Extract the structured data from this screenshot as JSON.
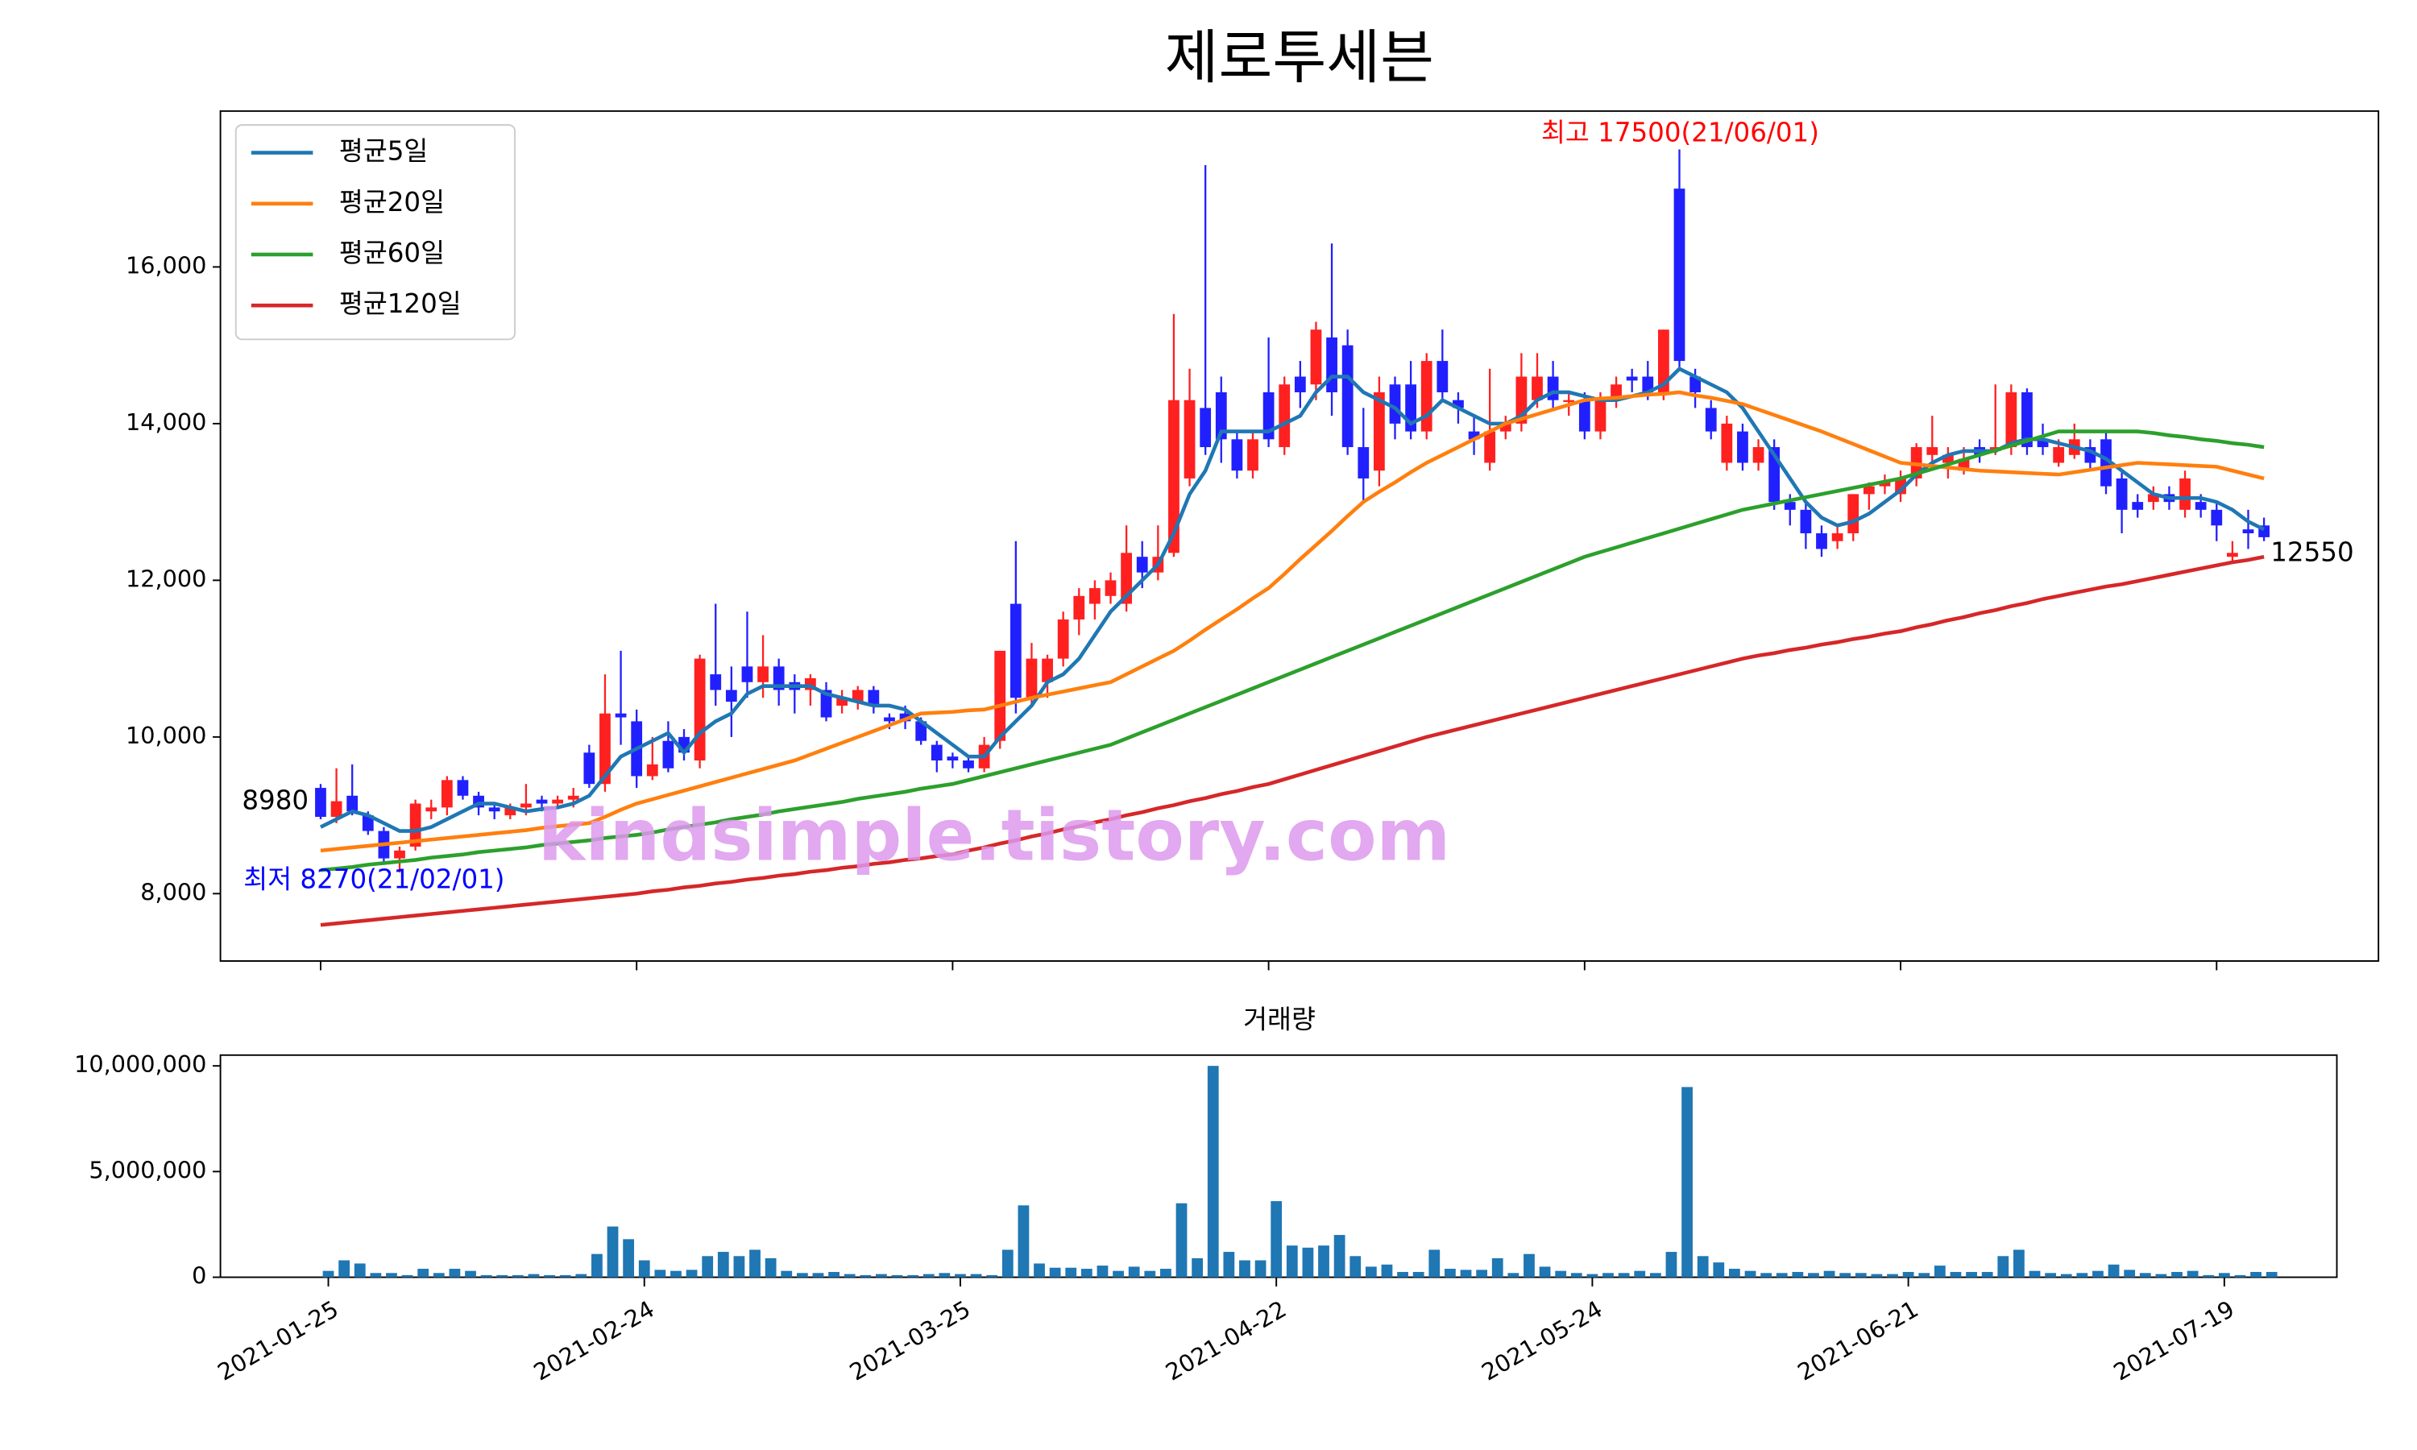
{
  "chart_data": {
    "type": "candlestick",
    "title": "제로투세븐",
    "watermark": "kindsimple.tistory.com",
    "up_color": "#ff2020",
    "down_color": "#2020ff",
    "categories": [
      "2021-01-25",
      null,
      null,
      null,
      null,
      null,
      null,
      null,
      null,
      null,
      null,
      null,
      null,
      null,
      null,
      null,
      null,
      null,
      null,
      null,
      "2021-02-24",
      null,
      null,
      null,
      null,
      null,
      null,
      null,
      null,
      null,
      null,
      null,
      null,
      null,
      null,
      null,
      null,
      null,
      null,
      null,
      "2021-03-25",
      null,
      null,
      null,
      null,
      null,
      null,
      null,
      null,
      null,
      null,
      null,
      null,
      null,
      null,
      null,
      null,
      null,
      null,
      null,
      "2021-04-22",
      null,
      null,
      null,
      null,
      null,
      null,
      null,
      null,
      null,
      null,
      null,
      null,
      null,
      null,
      null,
      null,
      null,
      null,
      null,
      "2021-05-24",
      null,
      null,
      null,
      null,
      null,
      null,
      null,
      null,
      null,
      null,
      null,
      null,
      null,
      null,
      null,
      null,
      null,
      null,
      null,
      "2021-06-21",
      null,
      null,
      null,
      null,
      null,
      null,
      null,
      null,
      null,
      null,
      null,
      null,
      null,
      null,
      null,
      null,
      null,
      null,
      null,
      "2021-07-19",
      null,
      null,
      null
    ],
    "open": [
      9350,
      8980,
      9250,
      9000,
      8800,
      8450,
      8600,
      9050,
      9100,
      9450,
      9250,
      9100,
      9000,
      9100,
      9200,
      9150,
      9200,
      9800,
      9400,
      10300,
      10200,
      9500,
      9950,
      10000,
      9700,
      10800,
      10600,
      10900,
      10700,
      10900,
      10700,
      10600,
      10600,
      10400,
      10450,
      10600,
      10250,
      10300,
      10200,
      9900,
      9750,
      9700,
      9600,
      9950,
      11700,
      10500,
      10700,
      11000,
      11500,
      11700,
      11800,
      11700,
      12300,
      12100,
      12350,
      13300,
      14200,
      14400,
      13800,
      13400,
      14400,
      13700,
      14600,
      14500,
      15100,
      15000,
      13700,
      13400,
      14500,
      14500,
      13900,
      14800,
      14300,
      13900,
      13500,
      13900,
      14000,
      14300,
      14600,
      14300,
      14300,
      13900,
      14300,
      14600,
      14600,
      14400,
      17000,
      14600,
      14200,
      13500,
      13900,
      13500,
      13700,
      13000,
      12900,
      12600,
      12500,
      12600,
      13100,
      13200,
      13100,
      13300,
      13600,
      13500,
      13400,
      13700,
      13650,
      13700,
      14400,
      13800,
      13500,
      13600,
      13700,
      13800,
      13300,
      13000,
      13000,
      13100,
      12900,
      13000,
      12900,
      12300,
      12650,
      12700
    ],
    "high": [
      9400,
      9600,
      9650,
      9050,
      8850,
      8600,
      9200,
      9200,
      9500,
      9500,
      9300,
      9150,
      9150,
      9400,
      9250,
      9250,
      9350,
      9900,
      10800,
      11100,
      10350,
      10000,
      10200,
      10100,
      11050,
      11700,
      10900,
      11600,
      11300,
      11000,
      10800,
      10800,
      10700,
      10600,
      10650,
      10650,
      10300,
      10400,
      10250,
      9950,
      9800,
      9750,
      10000,
      11100,
      12500,
      11200,
      11050,
      11600,
      11900,
      12000,
      12100,
      12700,
      12500,
      12700,
      15400,
      14700,
      17300,
      14600,
      13900,
      13900,
      15100,
      14600,
      14800,
      15300,
      16300,
      15200,
      14200,
      14600,
      14600,
      14800,
      14900,
      15200,
      14400,
      14100,
      14700,
      14100,
      14900,
      14900,
      14800,
      14400,
      14400,
      14400,
      14600,
      14700,
      14800,
      15200,
      17500,
      14700,
      14300,
      14100,
      14000,
      13800,
      13800,
      13100,
      13000,
      12700,
      12700,
      13100,
      13250,
      13350,
      13400,
      13750,
      14100,
      13700,
      13700,
      13800,
      14500,
      14500,
      14450,
      14000,
      13800,
      14000,
      13800,
      13900,
      13400,
      13100,
      13200,
      13200,
      13400,
      13100,
      13000,
      12500,
      12900,
      12800
    ],
    "low": [
      8950,
      8900,
      9000,
      8750,
      8400,
      8270,
      8550,
      8950,
      9000,
      9200,
      9000,
      8950,
      8950,
      9000,
      9050,
      9100,
      9100,
      9350,
      9300,
      9900,
      9350,
      9450,
      9550,
      9700,
      9600,
      10400,
      10000,
      10500,
      10500,
      10400,
      10300,
      10400,
      10200,
      10300,
      10350,
      10300,
      10100,
      10100,
      9900,
      9550,
      9600,
      9550,
      9550,
      9850,
      10300,
      10400,
      10500,
      10900,
      11300,
      11500,
      11700,
      11600,
      11900,
      12000,
      12300,
      13200,
      13600,
      13500,
      13300,
      13300,
      13700,
      13600,
      14200,
      14300,
      14100,
      13600,
      13000,
      13200,
      13800,
      13800,
      13800,
      14300,
      14000,
      13600,
      13400,
      13800,
      13900,
      14200,
      14200,
      14100,
      13800,
      13800,
      14200,
      14400,
      14300,
      14300,
      14700,
      14200,
      13800,
      13400,
      13400,
      13400,
      12900,
      12700,
      12400,
      12300,
      12400,
      12500,
      12900,
      13100,
      13000,
      13200,
      13500,
      13300,
      13350,
      13500,
      13600,
      13600,
      13600,
      13600,
      13450,
      13550,
      13400,
      13100,
      12600,
      12800,
      12900,
      12900,
      12800,
      12800,
      12500,
      12250,
      12400,
      12500
    ],
    "close": [
      8980,
      9180,
      9050,
      8800,
      8450,
      8550,
      9150,
      9100,
      9450,
      9250,
      9100,
      9050,
      9100,
      9150,
      9150,
      9200,
      9250,
      9400,
      10300,
      10250,
      9500,
      9650,
      9600,
      9800,
      11000,
      10600,
      10450,
      10700,
      10900,
      10600,
      10600,
      10750,
      10250,
      10500,
      10600,
      10400,
      10200,
      10200,
      9950,
      9700,
      9700,
      9600,
      9900,
      11100,
      10500,
      11000,
      11000,
      11500,
      11800,
      11900,
      12000,
      12350,
      12100,
      12300,
      14300,
      14300,
      13700,
      13800,
      13400,
      13800,
      13800,
      14500,
      14400,
      15200,
      14400,
      13700,
      13300,
      14400,
      14000,
      13900,
      14800,
      14400,
      14200,
      13800,
      13900,
      14000,
      14600,
      14600,
      14300,
      14300,
      13900,
      14300,
      14500,
      14550,
      14400,
      15200,
      14800,
      14400,
      13900,
      14000,
      13500,
      13700,
      13000,
      12900,
      12600,
      12400,
      12600,
      13100,
      13200,
      13250,
      13300,
      13700,
      13700,
      13600,
      13550,
      13600,
      13700,
      14400,
      13700,
      13700,
      13700,
      13800,
      13500,
      13200,
      12900,
      12900,
      13100,
      13000,
      13300,
      12900,
      12700,
      12350,
      12600,
      12550
    ],
    "ma_series": [
      {
        "name": "평균5일",
        "color": "#1f77b4",
        "values": [
          8850,
          8950,
          9050,
          9000,
          8900,
          8800,
          8800,
          8850,
          8950,
          9050,
          9150,
          9150,
          9100,
          9050,
          9080,
          9100,
          9150,
          9250,
          9500,
          9750,
          9850,
          9950,
          10050,
          9800,
          10050,
          10200,
          10300,
          10550,
          10650,
          10650,
          10650,
          10650,
          10550,
          10500,
          10450,
          10400,
          10400,
          10350,
          10200,
          10050,
          9900,
          9750,
          9750,
          10000,
          10200,
          10400,
          10700,
          10800,
          11000,
          11300,
          11600,
          11800,
          12000,
          12200,
          12600,
          13100,
          13400,
          13900,
          13900,
          13900,
          13900,
          14000,
          14100,
          14400,
          14600,
          14600,
          14400,
          14300,
          14200,
          14000,
          14100,
          14300,
          14200,
          14100,
          14000,
          14000,
          14100,
          14300,
          14400,
          14400,
          14350,
          14300,
          14300,
          14350,
          14400,
          14500,
          14700,
          14600,
          14500,
          14400,
          14200,
          13900,
          13600,
          13300,
          13000,
          12800,
          12700,
          12750,
          12850,
          13000,
          13150,
          13350,
          13500,
          13600,
          13650,
          13650,
          13650,
          13750,
          13800,
          13800,
          13750,
          13700,
          13650,
          13550,
          13400,
          13250,
          13100,
          13050,
          13050,
          13050,
          13000,
          12900,
          12750,
          12650
        ]
      },
      {
        "name": "평균20일",
        "color": "#ff7f0e",
        "values": [
          8550,
          8570,
          8590,
          8610,
          8630,
          8650,
          8670,
          8690,
          8710,
          8730,
          8750,
          8770,
          8790,
          8810,
          8840,
          8860,
          8880,
          8900,
          8980,
          9070,
          9150,
          9205,
          9260,
          9315,
          9370,
          9425,
          9480,
          9535,
          9590,
          9645,
          9700,
          9775,
          9850,
          9925,
          10000,
          10075,
          10150,
          10225,
          10300,
          10310,
          10320,
          10340,
          10350,
          10400,
          10450,
          10500,
          10540,
          10580,
          10620,
          10660,
          10700,
          10800,
          10900,
          11000,
          11100,
          11230,
          11370,
          11500,
          11630,
          11770,
          11900,
          12080,
          12270,
          12450,
          12630,
          12820,
          13000,
          13130,
          13250,
          13380,
          13500,
          13600,
          13700,
          13800,
          13900,
          14000,
          14060,
          14120,
          14180,
          14240,
          14300,
          14320,
          14330,
          14350,
          14370,
          14380,
          14400,
          14360,
          14330,
          14290,
          14250,
          14180,
          14110,
          14040,
          13970,
          13900,
          13820,
          13740,
          13660,
          13580,
          13500,
          13480,
          13460,
          13440,
          13420,
          13400,
          13390,
          13380,
          13370,
          13360,
          13350,
          13380,
          13410,
          13440,
          13470,
          13500,
          13490,
          13480,
          13470,
          13460,
          13450,
          13400,
          13350,
          13300
        ]
      },
      {
        "name": "평균60일",
        "color": "#2ca02c",
        "values": [
          8300,
          8320,
          8340,
          8370,
          8390,
          8410,
          8430,
          8460,
          8480,
          8500,
          8530,
          8550,
          8570,
          8590,
          8620,
          8640,
          8660,
          8680,
          8710,
          8730,
          8750,
          8780,
          8820,
          8850,
          8880,
          8910,
          8950,
          8980,
          9010,
          9050,
          9080,
          9110,
          9140,
          9170,
          9210,
          9240,
          9270,
          9300,
          9340,
          9370,
          9400,
          9450,
          9500,
          9550,
          9600,
          9650,
          9700,
          9750,
          9800,
          9850,
          9900,
          9980,
          10060,
          10140,
          10220,
          10300,
          10380,
          10460,
          10540,
          10620,
          10700,
          10780,
          10860,
          10940,
          11020,
          11100,
          11180,
          11260,
          11340,
          11420,
          11500,
          11580,
          11660,
          11740,
          11820,
          11900,
          11980,
          12060,
          12140,
          12220,
          12300,
          12360,
          12420,
          12480,
          12540,
          12600,
          12660,
          12720,
          12780,
          12840,
          12900,
          12940,
          12980,
          13020,
          13060,
          13100,
          13140,
          13180,
          13220,
          13260,
          13300,
          13360,
          13420,
          13480,
          13540,
          13600,
          13660,
          13720,
          13780,
          13840,
          13900,
          13900,
          13900,
          13900,
          13900,
          13900,
          13880,
          13850,
          13830,
          13800,
          13780,
          13750,
          13730,
          13700
        ]
      },
      {
        "name": "평균120일",
        "color": "#d62728",
        "values": [
          7600,
          7620,
          7640,
          7660,
          7680,
          7700,
          7720,
          7740,
          7760,
          7780,
          7800,
          7820,
          7840,
          7860,
          7880,
          7900,
          7920,
          7940,
          7960,
          7980,
          8000,
          8030,
          8050,
          8080,
          8100,
          8130,
          8150,
          8180,
          8200,
          8230,
          8250,
          8280,
          8300,
          8330,
          8350,
          8380,
          8400,
          8430,
          8450,
          8480,
          8500,
          8550,
          8590,
          8640,
          8680,
          8730,
          8770,
          8820,
          8860,
          8910,
          8950,
          9000,
          9040,
          9090,
          9130,
          9180,
          9220,
          9270,
          9310,
          9360,
          9400,
          9460,
          9520,
          9580,
          9640,
          9700,
          9760,
          9820,
          9880,
          9940,
          10000,
          10050,
          10100,
          10150,
          10200,
          10250,
          10300,
          10350,
          10400,
          10450,
          10500,
          10550,
          10600,
          10650,
          10700,
          10750,
          10800,
          10850,
          10900,
          10950,
          11000,
          11040,
          11070,
          11110,
          11140,
          11180,
          11210,
          11250,
          11280,
          11320,
          11350,
          11400,
          11440,
          11490,
          11530,
          11580,
          11620,
          11670,
          11710,
          11760,
          11800,
          11840,
          11880,
          11920,
          11950,
          11990,
          12030,
          12070,
          12110,
          12150,
          12190,
          12230,
          12260,
          12300
        ]
      }
    ],
    "ylim": [
      7140,
      17990
    ],
    "yticks": [
      {
        "value": 8000,
        "label": "8,000"
      },
      {
        "value": 10000,
        "label": "10,000"
      },
      {
        "value": 12000,
        "label": "12,000"
      },
      {
        "value": 14000,
        "label": "14,000"
      },
      {
        "value": 16000,
        "label": "16,000"
      }
    ],
    "legend": "upper left",
    "annotations": {
      "high": "최고 17500(21/06/01)",
      "low": "최저 8270(21/02/01)",
      "first": "8980",
      "last": "12550"
    },
    "volume": {
      "title": "거래량",
      "color": "#1f77b4",
      "values": [
        300000,
        800000,
        650000,
        200000,
        200000,
        100000,
        400000,
        200000,
        400000,
        300000,
        100000,
        100000,
        100000,
        150000,
        100000,
        100000,
        150000,
        1100000,
        2400000,
        1800000,
        800000,
        350000,
        300000,
        350000,
        1000000,
        1200000,
        1000000,
        1300000,
        900000,
        300000,
        200000,
        200000,
        250000,
        150000,
        100000,
        150000,
        100000,
        100000,
        150000,
        200000,
        150000,
        150000,
        100000,
        1300000,
        3400000,
        650000,
        450000,
        450000,
        400000,
        550000,
        300000,
        500000,
        300000,
        400000,
        3500000,
        900000,
        10000000,
        1200000,
        800000,
        800000,
        3600000,
        1500000,
        1400000,
        1500000,
        2000000,
        1000000,
        500000,
        600000,
        250000,
        250000,
        1300000,
        400000,
        350000,
        350000,
        900000,
        200000,
        1100000,
        500000,
        300000,
        200000,
        150000,
        200000,
        200000,
        300000,
        200000,
        1200000,
        9000000,
        1000000,
        700000,
        400000,
        300000,
        200000,
        200000,
        250000,
        200000,
        300000,
        200000,
        200000,
        150000,
        150000,
        250000,
        200000,
        550000,
        250000,
        250000,
        250000,
        1000000,
        1300000,
        300000,
        200000,
        150000,
        200000,
        300000,
        600000,
        350000,
        200000,
        150000,
        250000,
        300000,
        100000,
        200000,
        100000,
        250000,
        250000
      ],
      "ylim": [
        0,
        10510000
      ],
      "yticks": [
        {
          "value": 0,
          "label": "0"
        },
        {
          "value": 5000000,
          "label": "5,000,000"
        },
        {
          "value": 10000000,
          "label": "10,000,000"
        }
      ]
    }
  }
}
